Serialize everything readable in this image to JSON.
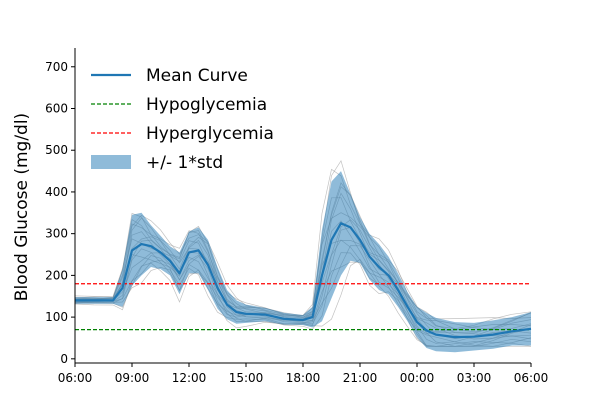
{
  "chart_data": {
    "type": "line",
    "title": "",
    "xlabel": "",
    "ylabel": "Blood Glucose (mg/dl)",
    "xlim": [
      "06:00",
      "06:00 (+1 day)"
    ],
    "ylim": [
      -10,
      745
    ],
    "x_tick_labels": [
      "06:00",
      "09:00",
      "12:00",
      "15:00",
      "18:00",
      "21:00",
      "00:00",
      "03:00",
      "06:00"
    ],
    "y_ticks": [
      0,
      100,
      200,
      300,
      400,
      500,
      600,
      700
    ],
    "grid": false,
    "legend_position": "top-left",
    "legend": [
      {
        "label": "Mean Curve",
        "style": "solid",
        "color": "#1f77b4"
      },
      {
        "label": "Hypoglycemia",
        "style": "dashed",
        "color": "#008000"
      },
      {
        "label": "Hyperglycemia",
        "style": "dashed",
        "color": "#ff0000"
      },
      {
        "label": "+/- 1*std",
        "style": "band",
        "color": "#1f77b4"
      }
    ],
    "thresholds": {
      "hypoglycemia": 70,
      "hyperglycemia": 180
    },
    "mean_curve": {
      "name": "Mean Curve",
      "x": [
        "06:00",
        "07:00",
        "08:00",
        "08:30",
        "09:00",
        "09:30",
        "10:00",
        "10:30",
        "11:00",
        "11:30",
        "12:00",
        "12:30",
        "13:00",
        "13:30",
        "14:00",
        "14:30",
        "15:00",
        "16:00",
        "17:00",
        "18:00",
        "18:30",
        "19:00",
        "19:30",
        "20:00",
        "20:30",
        "21:00",
        "21:30",
        "22:00",
        "22:30",
        "23:00",
        "23:30",
        "00:00",
        "00:30",
        "01:00",
        "02:00",
        "03:00",
        "04:00",
        "05:00",
        "06:00 (+1 day)"
      ],
      "y": [
        140,
        140,
        140,
        170,
        260,
        275,
        270,
        255,
        235,
        205,
        255,
        260,
        225,
        170,
        130,
        112,
        108,
        106,
        96,
        93,
        100,
        200,
        285,
        325,
        315,
        285,
        245,
        220,
        200,
        165,
        125,
        88,
        68,
        58,
        52,
        53,
        58,
        66,
        72
      ]
    },
    "std_band": {
      "name": "+/- 1*std",
      "x": [
        "06:00",
        "07:00",
        "08:00",
        "08:30",
        "09:00",
        "09:30",
        "10:00",
        "10:30",
        "11:00",
        "11:30",
        "12:00",
        "12:30",
        "13:00",
        "13:30",
        "14:00",
        "14:30",
        "15:00",
        "16:00",
        "17:00",
        "18:00",
        "18:30",
        "19:00",
        "19:30",
        "20:00",
        "20:30",
        "21:00",
        "21:30",
        "22:00",
        "22:30",
        "23:00",
        "23:30",
        "00:00",
        "00:30",
        "01:00",
        "02:00",
        "03:00",
        "04:00",
        "05:00",
        "06:00 (+1 day)"
      ],
      "upper": [
        148,
        148,
        148,
        215,
        345,
        350,
        320,
        295,
        270,
        255,
        305,
        315,
        285,
        220,
        165,
        140,
        130,
        122,
        110,
        105,
        125,
        310,
        425,
        450,
        395,
        340,
        300,
        275,
        245,
        205,
        160,
        125,
        110,
        98,
        88,
        86,
        92,
        100,
        112
      ],
      "lower": [
        132,
        132,
        132,
        125,
        175,
        200,
        220,
        215,
        200,
        155,
        205,
        205,
        165,
        120,
        95,
        84,
        86,
        90,
        82,
        81,
        75,
        90,
        145,
        200,
        235,
        230,
        190,
        165,
        155,
        125,
        90,
        51,
        26,
        18,
        16,
        20,
        24,
        32,
        32
      ]
    }
  }
}
